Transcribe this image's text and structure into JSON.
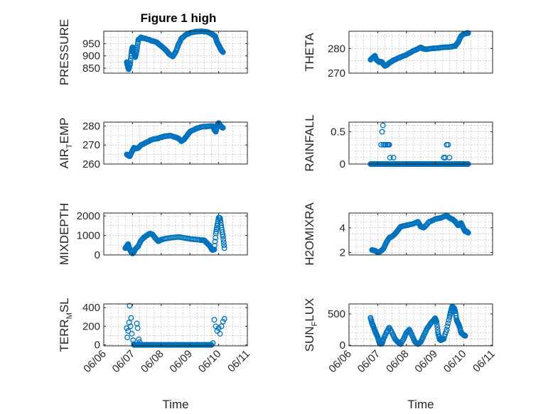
{
  "figure": {
    "title": "Figure 1 high",
    "marker_color": "#0072BD"
  },
  "chart_data": [
    {
      "type": "scatter",
      "id": "pressure",
      "ylabel_main": "PRESSURE",
      "ylabel_sub": "",
      "ylabel_tail": "",
      "title": "Figure 1 high",
      "xlim": [
        0,
        5
      ],
      "ylim": [
        830,
        1000
      ],
      "yticks": [
        850,
        900,
        950
      ],
      "ytick_labels": [
        "850",
        "900",
        "950"
      ],
      "yminor": [
        825,
        875,
        925,
        975
      ],
      "xticks": [
        0,
        1,
        2,
        3,
        4,
        5
      ],
      "xtick_labels": [],
      "show_xlabel": false,
      "keyframes": [
        [
          0.8,
          875
        ],
        [
          0.83,
          860
        ],
        [
          0.87,
          845
        ],
        [
          0.92,
          870
        ],
        [
          0.97,
          920
        ],
        [
          1.0,
          935
        ],
        [
          1.05,
          910
        ],
        [
          1.1,
          895
        ],
        [
          1.15,
          925
        ],
        [
          1.2,
          965
        ],
        [
          1.3,
          975
        ],
        [
          1.5,
          968
        ],
        [
          1.7,
          960
        ],
        [
          1.85,
          955
        ],
        [
          1.95,
          945
        ],
        [
          2.1,
          930
        ],
        [
          2.2,
          918
        ],
        [
          2.3,
          905
        ],
        [
          2.4,
          898
        ],
        [
          2.5,
          915
        ],
        [
          2.6,
          945
        ],
        [
          2.7,
          970
        ],
        [
          2.85,
          985
        ],
        [
          3.0,
          993
        ],
        [
          3.2,
          998
        ],
        [
          3.4,
          1000
        ],
        [
          3.6,
          998
        ],
        [
          3.75,
          990
        ],
        [
          3.82,
          985
        ],
        [
          3.88,
          980
        ],
        [
          3.93,
          960
        ],
        [
          3.97,
          950
        ],
        [
          4.02,
          940
        ],
        [
          4.06,
          930
        ],
        [
          4.1,
          922
        ],
        [
          4.15,
          915
        ]
      ],
      "density": 5
    },
    {
      "type": "scatter",
      "id": "theta",
      "ylabel_main": "THETA",
      "ylabel_sub": "",
      "ylabel_tail": "",
      "xlim": [
        0,
        5
      ],
      "ylim": [
        270,
        287
      ],
      "yticks": [
        270,
        280
      ],
      "ytick_labels": [
        "270",
        "280"
      ],
      "yminor": [
        265,
        275,
        285
      ],
      "xticks": [
        0,
        1,
        2,
        3,
        4,
        5
      ],
      "xtick_labels": [],
      "show_xlabel": false,
      "keyframes": [
        [
          0.75,
          275.5
        ],
        [
          0.85,
          276.5
        ],
        [
          0.9,
          277
        ],
        [
          0.95,
          275.5
        ],
        [
          1.0,
          275
        ],
        [
          1.05,
          274.5
        ],
        [
          1.1,
          274.7
        ],
        [
          1.15,
          274.4
        ],
        [
          1.2,
          273.5
        ],
        [
          1.25,
          273
        ],
        [
          1.3,
          273.2
        ],
        [
          1.35,
          273.6
        ],
        [
          1.45,
          274.5
        ],
        [
          1.6,
          275.5
        ],
        [
          1.8,
          276.5
        ],
        [
          2.0,
          277.5
        ],
        [
          2.2,
          278.8
        ],
        [
          2.4,
          279.8
        ],
        [
          2.5,
          280.5
        ],
        [
          2.6,
          279.8
        ],
        [
          2.7,
          279.7
        ],
        [
          2.9,
          280
        ],
        [
          3.1,
          280.2
        ],
        [
          3.3,
          280.5
        ],
        [
          3.5,
          280.6
        ],
        [
          3.7,
          281
        ],
        [
          3.8,
          282.5
        ],
        [
          3.9,
          285
        ],
        [
          4.0,
          286
        ],
        [
          4.1,
          286.2
        ],
        [
          4.15,
          286.3
        ]
      ],
      "density": 5
    },
    {
      "type": "scatter",
      "id": "air_temp",
      "ylabel_main": "AIR",
      "ylabel_sub": "T",
      "ylabel_tail": "EMP",
      "xlim": [
        0,
        5
      ],
      "ylim": [
        260,
        282
      ],
      "yticks": [
        260,
        270,
        280
      ],
      "ytick_labels": [
        "260",
        "270",
        "280"
      ],
      "yminor": [
        255,
        265,
        275
      ],
      "xticks": [
        0,
        1,
        2,
        3,
        4,
        5
      ],
      "xtick_labels": [],
      "show_xlabel": false,
      "keyframes": [
        [
          0.8,
          265
        ],
        [
          0.85,
          264.5
        ],
        [
          0.9,
          264
        ],
        [
          0.95,
          265.5
        ],
        [
          1.0,
          267
        ],
        [
          1.05,
          268.5
        ],
        [
          1.1,
          268
        ],
        [
          1.2,
          268.5
        ],
        [
          1.3,
          270
        ],
        [
          1.5,
          271.5
        ],
        [
          1.7,
          273
        ],
        [
          1.9,
          273.5
        ],
        [
          2.1,
          274.5
        ],
        [
          2.3,
          275
        ],
        [
          2.5,
          274
        ],
        [
          2.6,
          273.5
        ],
        [
          2.7,
          272
        ],
        [
          2.8,
          273
        ],
        [
          2.9,
          275
        ],
        [
          3.0,
          277
        ],
        [
          3.2,
          278.5
        ],
        [
          3.4,
          279.5
        ],
        [
          3.6,
          279.8
        ],
        [
          3.8,
          280
        ],
        [
          3.85,
          278
        ],
        [
          3.9,
          277
        ],
        [
          3.95,
          280.5
        ],
        [
          4.0,
          281.5
        ],
        [
          4.05,
          280.5
        ],
        [
          4.1,
          279.5
        ],
        [
          4.15,
          279
        ]
      ],
      "density": 5
    },
    {
      "type": "scatter",
      "id": "rainfall",
      "ylabel_main": "RAINFALL",
      "ylabel_sub": "",
      "ylabel_tail": "",
      "xlim": [
        0,
        5
      ],
      "ylim": [
        0,
        0.65
      ],
      "yticks": [
        0,
        0.5
      ],
      "ytick_labels": [
        "0",
        "0.5"
      ],
      "yminor": [
        0.1,
        0.2,
        0.3,
        0.4,
        0.6
      ],
      "xticks": [
        0,
        1,
        2,
        3,
        4,
        5
      ],
      "xtick_labels": [],
      "show_xlabel": false,
      "baseline": {
        "from": 0.75,
        "to": 4.15,
        "count": 130,
        "value": 0
      },
      "spikes": [
        [
          1.18,
          0.6
        ],
        [
          1.15,
          0.5
        ],
        [
          1.12,
          0.3
        ],
        [
          1.2,
          0.3
        ],
        [
          1.25,
          0.3
        ],
        [
          1.28,
          0.3
        ],
        [
          1.33,
          0.3
        ],
        [
          1.37,
          0.3
        ],
        [
          1.4,
          0.3
        ],
        [
          1.43,
          0.1
        ],
        [
          1.55,
          0.1
        ],
        [
          1.7,
          0.0
        ],
        [
          3.3,
          0.1
        ],
        [
          3.35,
          0.1
        ],
        [
          3.4,
          0.3
        ],
        [
          3.45,
          0.3
        ],
        [
          3.5,
          0.1
        ]
      ],
      "density": 1
    },
    {
      "type": "scatter",
      "id": "mixdepth",
      "ylabel_main": "MIXDEPTH",
      "ylabel_sub": "",
      "ylabel_tail": "",
      "xlim": [
        0,
        5
      ],
      "ylim": [
        0,
        2150
      ],
      "yticks": [
        0,
        1000,
        2000
      ],
      "ytick_labels": [
        "0",
        "1000",
        "2000"
      ],
      "yminor": [
        500,
        1500
      ],
      "xticks": [
        0,
        1,
        2,
        3,
        4,
        5
      ],
      "xtick_labels": [],
      "show_xlabel": false,
      "keyframes": [
        [
          0.75,
          350
        ],
        [
          0.8,
          450
        ],
        [
          0.85,
          550
        ],
        [
          0.9,
          300
        ],
        [
          0.95,
          150
        ],
        [
          1.0,
          80
        ],
        [
          1.05,
          150
        ],
        [
          1.1,
          300
        ],
        [
          1.2,
          450
        ],
        [
          1.3,
          750
        ],
        [
          1.4,
          900
        ],
        [
          1.5,
          1000
        ],
        [
          1.6,
          1100
        ],
        [
          1.7,
          1050
        ],
        [
          1.8,
          850
        ],
        [
          1.9,
          700
        ],
        [
          2.0,
          780
        ],
        [
          2.2,
          850
        ],
        [
          2.4,
          900
        ],
        [
          2.6,
          920
        ],
        [
          2.8,
          880
        ],
        [
          3.0,
          820
        ],
        [
          3.2,
          800
        ],
        [
          3.4,
          760
        ],
        [
          3.5,
          750
        ],
        [
          3.6,
          600
        ],
        [
          3.7,
          450
        ],
        [
          3.75,
          300
        ],
        [
          3.8,
          250
        ],
        [
          3.85,
          280
        ],
        [
          3.9,
          1100
        ],
        [
          3.95,
          1500
        ],
        [
          4.0,
          1900
        ],
        [
          4.05,
          1900
        ],
        [
          4.1,
          1400
        ],
        [
          4.15,
          950
        ],
        [
          4.2,
          350
        ]
      ],
      "density": 4
    },
    {
      "type": "scatter",
      "id": "h2omixra",
      "ylabel_main": "H2OMIXRA",
      "ylabel_sub": "",
      "ylabel_tail": "",
      "xlim": [
        0,
        5
      ],
      "ylim": [
        1.8,
        5.2
      ],
      "yticks": [
        2,
        4
      ],
      "ytick_labels": [
        "2",
        "4"
      ],
      "yminor": [
        1.5,
        2.5,
        3,
        3.5,
        4.5,
        5
      ],
      "xticks": [
        0,
        1,
        2,
        3,
        4,
        5
      ],
      "xtick_labels": [],
      "show_xlabel": false,
      "keyframes": [
        [
          0.8,
          2.2
        ],
        [
          0.9,
          2.15
        ],
        [
          1.0,
          2.0
        ],
        [
          1.1,
          2.1
        ],
        [
          1.2,
          2.3
        ],
        [
          1.3,
          2.8
        ],
        [
          1.4,
          3.2
        ],
        [
          1.5,
          3.3
        ],
        [
          1.6,
          3.5
        ],
        [
          1.7,
          3.8
        ],
        [
          1.8,
          4.1
        ],
        [
          2.0,
          4.2
        ],
        [
          2.2,
          4.3
        ],
        [
          2.4,
          4.5
        ],
        [
          2.5,
          4.1
        ],
        [
          2.6,
          4.0
        ],
        [
          2.8,
          4.5
        ],
        [
          3.0,
          4.7
        ],
        [
          3.2,
          4.8
        ],
        [
          3.4,
          5.0
        ],
        [
          3.5,
          4.8
        ],
        [
          3.6,
          4.7
        ],
        [
          3.7,
          4.5
        ],
        [
          3.8,
          4.2
        ],
        [
          3.9,
          4.4
        ],
        [
          4.0,
          3.9
        ],
        [
          4.05,
          3.7
        ],
        [
          4.1,
          3.7
        ],
        [
          4.15,
          3.6
        ]
      ],
      "density": 5
    },
    {
      "type": "scatter",
      "id": "terr_msl",
      "ylabel_main": "TERR",
      "ylabel_sub": "M",
      "ylabel_tail": "SL",
      "xlim": [
        0,
        5
      ],
      "ylim": [
        -10,
        440
      ],
      "yticks": [
        0,
        200,
        400
      ],
      "ytick_labels": [
        "0",
        "200",
        "400"
      ],
      "yminor": [
        100,
        300
      ],
      "xticks": [
        0,
        1,
        2,
        3,
        4,
        5
      ],
      "xtick_labels": [
        "06/06",
        "06/07",
        "06/08",
        "06/09",
        "06/10",
        "06/11"
      ],
      "show_xlabel": true,
      "xlabel": "Time",
      "baseline": {
        "from": 1.05,
        "to": 3.75,
        "count": 140,
        "value": 0
      },
      "spikes": [
        [
          0.8,
          180
        ],
        [
          0.82,
          80
        ],
        [
          0.85,
          150
        ],
        [
          0.88,
          240
        ],
        [
          0.9,
          420
        ],
        [
          0.93,
          200
        ],
        [
          0.95,
          290
        ],
        [
          0.98,
          120
        ],
        [
          1.02,
          50
        ],
        [
          1.05,
          10
        ],
        [
          1.15,
          230
        ],
        [
          1.18,
          180
        ],
        [
          1.22,
          60
        ],
        [
          1.25,
          30
        ],
        [
          3.8,
          20
        ],
        [
          3.85,
          270
        ],
        [
          3.9,
          200
        ],
        [
          3.95,
          150
        ],
        [
          4.0,
          180
        ],
        [
          4.05,
          120
        ],
        [
          4.1,
          200
        ],
        [
          4.15,
          250
        ],
        [
          4.2,
          280
        ]
      ],
      "density": 1
    },
    {
      "type": "scatter",
      "id": "sun_flux",
      "ylabel_main": "SUN",
      "ylabel_sub": "F",
      "ylabel_tail": "LUX",
      "xlim": [
        0,
        5
      ],
      "ylim": [
        -10,
        660
      ],
      "yticks": [
        0,
        500
      ],
      "ytick_labels": [
        "0",
        "500"
      ],
      "yminor": [
        100,
        200,
        300,
        400,
        600
      ],
      "xticks": [
        0,
        1,
        2,
        3,
        4,
        5
      ],
      "xtick_labels": [
        "06/06",
        "06/07",
        "06/08",
        "06/09",
        "06/10",
        "06/11"
      ],
      "show_xlabel": true,
      "xlabel": "Time",
      "keyframes": [
        [
          0.75,
          440
        ],
        [
          0.8,
          350
        ],
        [
          0.85,
          300
        ],
        [
          0.9,
          230
        ],
        [
          0.95,
          180
        ],
        [
          1.0,
          130
        ],
        [
          1.05,
          50
        ],
        [
          1.1,
          20
        ],
        [
          1.15,
          30
        ],
        [
          1.2,
          100
        ],
        [
          1.3,
          200
        ],
        [
          1.4,
          280
        ],
        [
          1.5,
          200
        ],
        [
          1.6,
          100
        ],
        [
          1.7,
          50
        ],
        [
          1.8,
          20
        ],
        [
          1.9,
          100
        ],
        [
          2.0,
          200
        ],
        [
          2.1,
          250
        ],
        [
          2.2,
          150
        ],
        [
          2.3,
          50
        ],
        [
          2.4,
          20
        ],
        [
          2.5,
          50
        ],
        [
          2.6,
          150
        ],
        [
          2.7,
          250
        ],
        [
          2.8,
          320
        ],
        [
          2.9,
          380
        ],
        [
          3.0,
          430
        ],
        [
          3.05,
          380
        ],
        [
          3.1,
          200
        ],
        [
          3.15,
          100
        ],
        [
          3.2,
          80
        ],
        [
          3.3,
          100
        ],
        [
          3.4,
          250
        ],
        [
          3.5,
          450
        ],
        [
          3.55,
          550
        ],
        [
          3.6,
          620
        ],
        [
          3.65,
          600
        ],
        [
          3.7,
          540
        ],
        [
          3.75,
          400
        ],
        [
          3.8,
          350
        ],
        [
          3.85,
          300
        ],
        [
          3.9,
          200
        ],
        [
          3.95,
          180
        ],
        [
          4.0,
          160
        ],
        [
          4.05,
          150
        ]
      ],
      "density": 4
    }
  ]
}
